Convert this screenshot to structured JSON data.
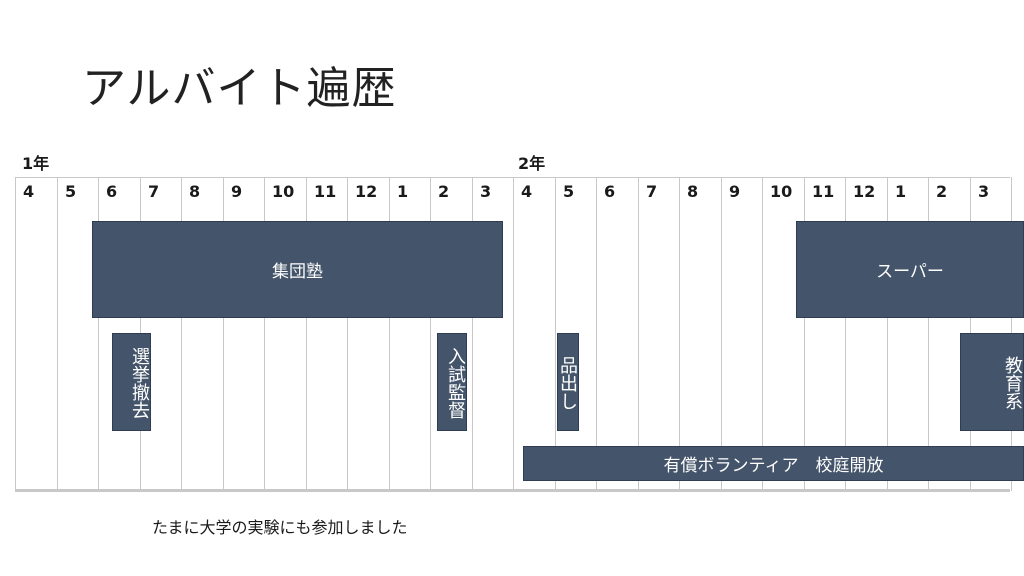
{
  "title": "アルバイト遍歴",
  "years": [
    "1年",
    "2年"
  ],
  "months": [
    "4",
    "5",
    "6",
    "7",
    "8",
    "9",
    "10",
    "11",
    "12",
    "1",
    "2",
    "3",
    "4",
    "5",
    "6",
    "7",
    "8",
    "9",
    "10",
    "11",
    "12",
    "1",
    "2",
    "3"
  ],
  "jobs": {
    "juku": "集団塾",
    "super": "スーパー",
    "election": "選挙撤去",
    "exam": "入試監督",
    "stocking": "品出し",
    "education": "教育系",
    "volunteer": "有償ボランティア　校庭開放"
  },
  "note": "たまに大学の実験にも参加しました",
  "colors": {
    "bar": "#44546a",
    "grid": "#c8c8c8"
  }
}
